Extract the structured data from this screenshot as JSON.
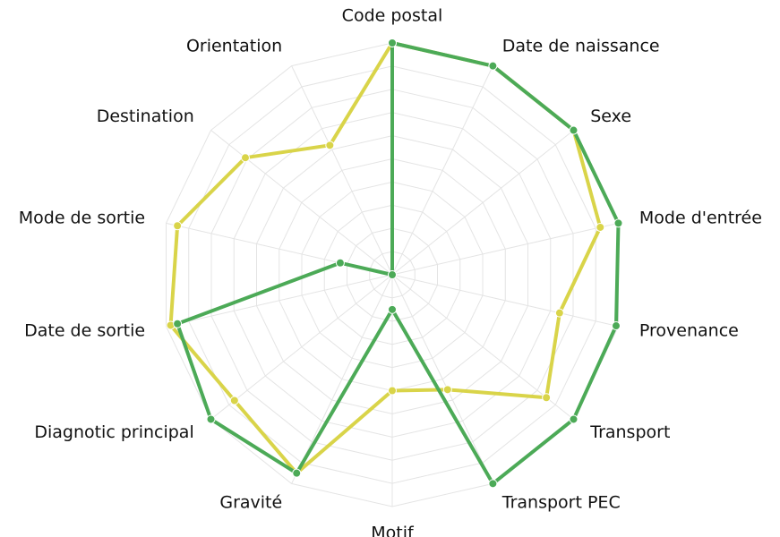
{
  "chart_data": {
    "type": "radar",
    "categories": [
      "Code postal",
      "Date de naissance",
      "Sexe",
      "Mode d'entrée",
      "Provenance",
      "Transport",
      "Transport PEC",
      "Motif",
      "Gravité",
      "Diagnotic principal",
      "Date de sortie",
      "Mode de sortie",
      "Destination",
      "Orientation"
    ],
    "series": [
      {
        "color": "#d9d449",
        "values": [
          100,
          100,
          100,
          92,
          74,
          85,
          55,
          50,
          95,
          87,
          98,
          95,
          81,
          62
        ]
      },
      {
        "color": "#4caa57",
        "values": [
          100,
          100,
          100,
          100,
          99,
          100,
          100,
          15,
          95,
          100,
          95,
          23,
          0,
          0
        ]
      }
    ],
    "rlim": [
      0,
      100
    ],
    "rticks": [
      0,
      10,
      20,
      30,
      40,
      50,
      60,
      70,
      80,
      90,
      100
    ],
    "grid": true
  }
}
